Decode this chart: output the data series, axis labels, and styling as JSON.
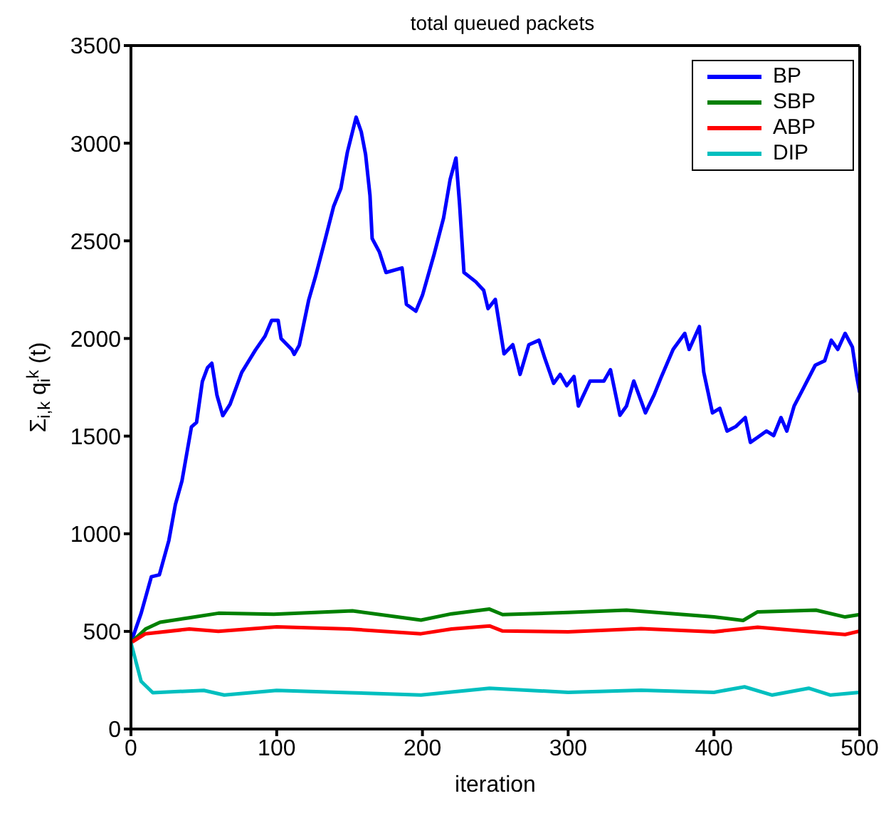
{
  "chart_data": {
    "type": "line",
    "title": "total queued packets",
    "xlabel": "iteration",
    "ylabel": "Σ$_{i,k}$ q$_{i}$$^{k}$ (t)",
    "xlim": [
      0,
      500
    ],
    "xticks": [
      0,
      100,
      200,
      300,
      400,
      500
    ],
    "ylim": [
      0,
      3500
    ],
    "yticks": [
      0,
      500,
      1000,
      1500,
      2000,
      2500,
      3000,
      3500
    ],
    "grid": false,
    "legend": "top right",
    "marker": "none",
    "line_style": "solid",
    "series": [
      {
        "name": "BP",
        "color": "#0000ff",
        "x": [
          0,
          7,
          14,
          19.5,
          26,
          30.5,
          35,
          41.5,
          45,
          49,
          52.5,
          55.5,
          59,
          63,
          68,
          76,
          85.5,
          92,
          96.5,
          101,
          103,
          110.5,
          112,
          115.5,
          122,
          126.5,
          133,
          139,
          144,
          148.5,
          154.5,
          158,
          161,
          164,
          165.5,
          170.5,
          175,
          186,
          189,
          195.5,
          200,
          208,
          214.5,
          219,
          223,
          225.5,
          228.5,
          236.5,
          242,
          245,
          250,
          254.5,
          256,
          262,
          267,
          273,
          280,
          284,
          290,
          294.5,
          299,
          304,
          307,
          315,
          324.5,
          329,
          335.5,
          340,
          345,
          353,
          359,
          364,
          372,
          380,
          383,
          390,
          393,
          399,
          404,
          409,
          415,
          421.5,
          425,
          429.5,
          436,
          441,
          446,
          450,
          455,
          461.5,
          469.5,
          476,
          480.5,
          485,
          490,
          495,
          498,
          500
        ],
        "values": [
          442,
          593,
          780,
          790,
          965,
          1150,
          1270,
          1547,
          1570,
          1780,
          1850,
          1873,
          1710,
          1605,
          1663,
          1826,
          1942,
          2012,
          2093,
          2093,
          2000,
          1942,
          1919,
          1965,
          2198,
          2314,
          2500,
          2675,
          2768,
          2954,
          3133,
          3059,
          2942,
          2733,
          2512,
          2442,
          2338,
          2361,
          2175,
          2140,
          2221,
          2431,
          2617,
          2814,
          2924,
          2686,
          2338,
          2291,
          2247,
          2153,
          2200,
          1991,
          1921,
          1968,
          1816,
          1968,
          1991,
          1898,
          1770,
          1816,
          1758,
          1805,
          1654,
          1782,
          1782,
          1840,
          1607,
          1654,
          1782,
          1619,
          1712,
          1805,
          1944,
          2026,
          1944,
          2061,
          1828,
          1619,
          1642,
          1526,
          1549,
          1595,
          1468,
          1491,
          1526,
          1503,
          1595,
          1526,
          1654,
          1747,
          1863,
          1886,
          1991,
          1944,
          2026,
          1956,
          1805,
          1723
        ]
      },
      {
        "name": "SBP",
        "color": "#008000",
        "x": [
          0,
          10,
          20,
          40,
          60,
          98,
          152,
          199,
          220,
          246,
          255,
          300,
          340,
          400,
          420,
          430,
          470,
          490,
          500
        ],
        "values": [
          442,
          512,
          547,
          570,
          593,
          588,
          605,
          558,
          590,
          614,
          586,
          597,
          609,
          574,
          556,
          600,
          609,
          574,
          586
        ]
      },
      {
        "name": "ABP",
        "color": "#ff0000",
        "x": [
          0,
          10,
          40,
          60,
          100,
          150,
          199,
          220,
          246,
          255,
          300,
          350,
          400,
          430,
          460,
          490,
          500
        ],
        "values": [
          442,
          488,
          512,
          500,
          523,
          512,
          488,
          512,
          528,
          502,
          498,
          514,
          498,
          521,
          502,
          484,
          502
        ]
      },
      {
        "name": "DIP",
        "color": "#00bfbf",
        "x": [
          0,
          7,
          15,
          50,
          64,
          100,
          150,
          199,
          246,
          300,
          350,
          400,
          421,
          440,
          465,
          480,
          500
        ],
        "values": [
          442,
          244,
          186,
          198,
          174,
          198,
          186,
          174,
          209,
          188,
          199,
          188,
          216,
          174,
          209,
          174,
          188
        ]
      }
    ]
  }
}
